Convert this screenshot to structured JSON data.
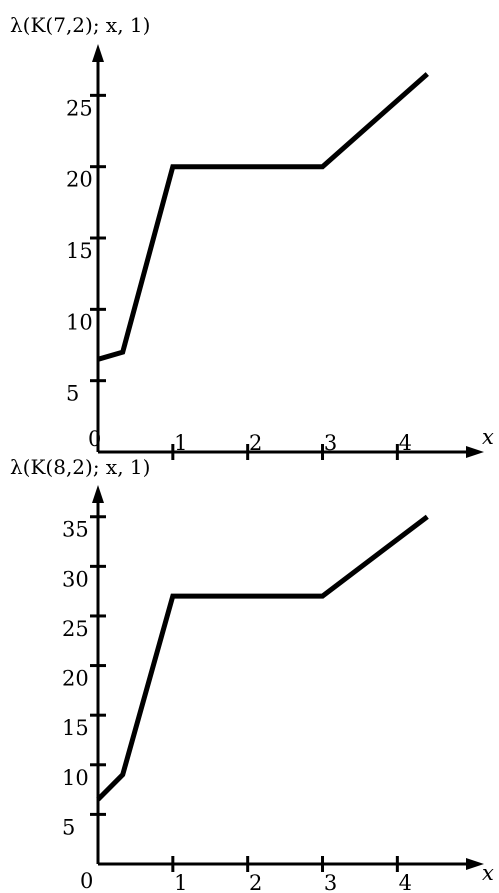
{
  "chart_data": [
    {
      "type": "line",
      "title": "",
      "ylabel": "λ(K(7,2); x, 1)",
      "xlabel": "x",
      "xlim": [
        0,
        4.65
      ],
      "ylim": [
        0,
        28.6
      ],
      "x_ticks": [
        1,
        2,
        3,
        4
      ],
      "y_ticks": [
        5,
        10,
        15,
        20,
        25
      ],
      "x_tick_labels": [
        "1",
        "2",
        "3",
        "4"
      ],
      "y_tick_labels": [
        "5",
        "10",
        "15",
        "20",
        "25"
      ],
      "origin_label": "0",
      "grid": false,
      "series": [
        {
          "x": [
            0,
            0.33,
            1,
            3,
            4.4
          ],
          "y": [
            6.5,
            7,
            20,
            20,
            26.5
          ]
        }
      ]
    },
    {
      "type": "line",
      "title": "",
      "ylabel": "λ(K(8,2); x, 1)",
      "xlabel": "x",
      "xlim": [
        0,
        4.65
      ],
      "ylim": [
        0,
        38.2
      ],
      "x_ticks": [
        1,
        2,
        3,
        4
      ],
      "y_ticks": [
        5,
        10,
        15,
        20,
        25,
        30,
        35
      ],
      "x_tick_labels": [
        "1",
        "2",
        "3",
        "4"
      ],
      "y_tick_labels": [
        "5",
        "10",
        "15",
        "20",
        "25",
        "30",
        "35"
      ],
      "origin_label": "0",
      "grid": false,
      "series": [
        {
          "x": [
            0,
            0.33,
            1,
            3,
            4.4
          ],
          "y": [
            6.5,
            9,
            27,
            27,
            35
          ]
        }
      ]
    }
  ]
}
